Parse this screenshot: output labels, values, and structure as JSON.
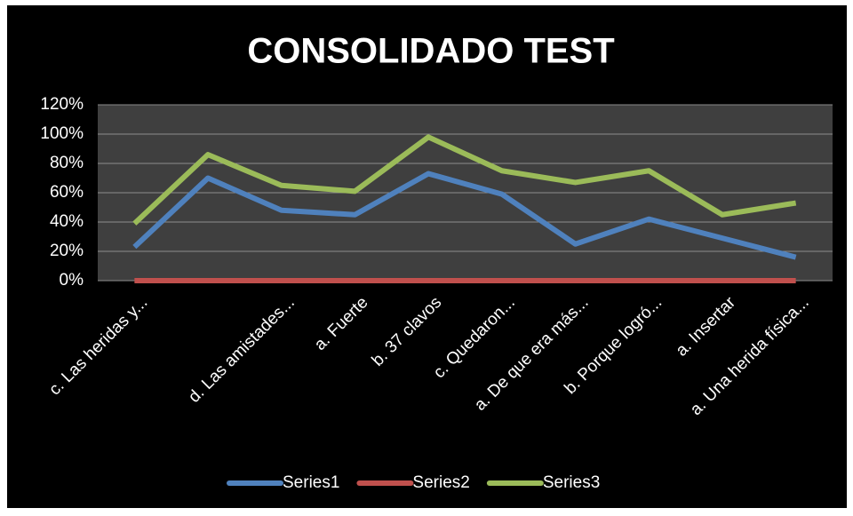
{
  "chart_data": {
    "type": "line",
    "title": "CONSOLIDADO TEST",
    "categories": [
      "c. Las heridas y...",
      null,
      "d. Las amistades...",
      "a. Fuerte",
      "b. 37 clavos",
      "c. Quedaron...",
      "a. De que era más...",
      "b. Porque logró...",
      "a. Insertar",
      "a. Una herida física..."
    ],
    "series": [
      {
        "name": "Series1",
        "color": "#4f81bd",
        "values": [
          23,
          70,
          48,
          45,
          73,
          59,
          25,
          42,
          29,
          16
        ]
      },
      {
        "name": "Series2",
        "color": "#c0504d",
        "values": [
          0,
          0,
          0,
          0,
          0,
          0,
          0,
          0,
          0,
          0
        ]
      },
      {
        "name": "Series3",
        "color": "#9bbb59",
        "values": [
          39,
          86,
          65,
          61,
          98,
          75,
          67,
          75,
          45,
          53
        ]
      }
    ],
    "ylim": [
      0,
      120
    ],
    "yticks": [
      {
        "value": 0,
        "label": "0%"
      },
      {
        "value": 20,
        "label": "20%"
      },
      {
        "value": 40,
        "label": "40%"
      },
      {
        "value": 60,
        "label": "60%"
      },
      {
        "value": 80,
        "label": "80%"
      },
      {
        "value": 100,
        "label": "100%"
      },
      {
        "value": 120,
        "label": "120%"
      }
    ],
    "grid": true,
    "legend": "bottom"
  }
}
